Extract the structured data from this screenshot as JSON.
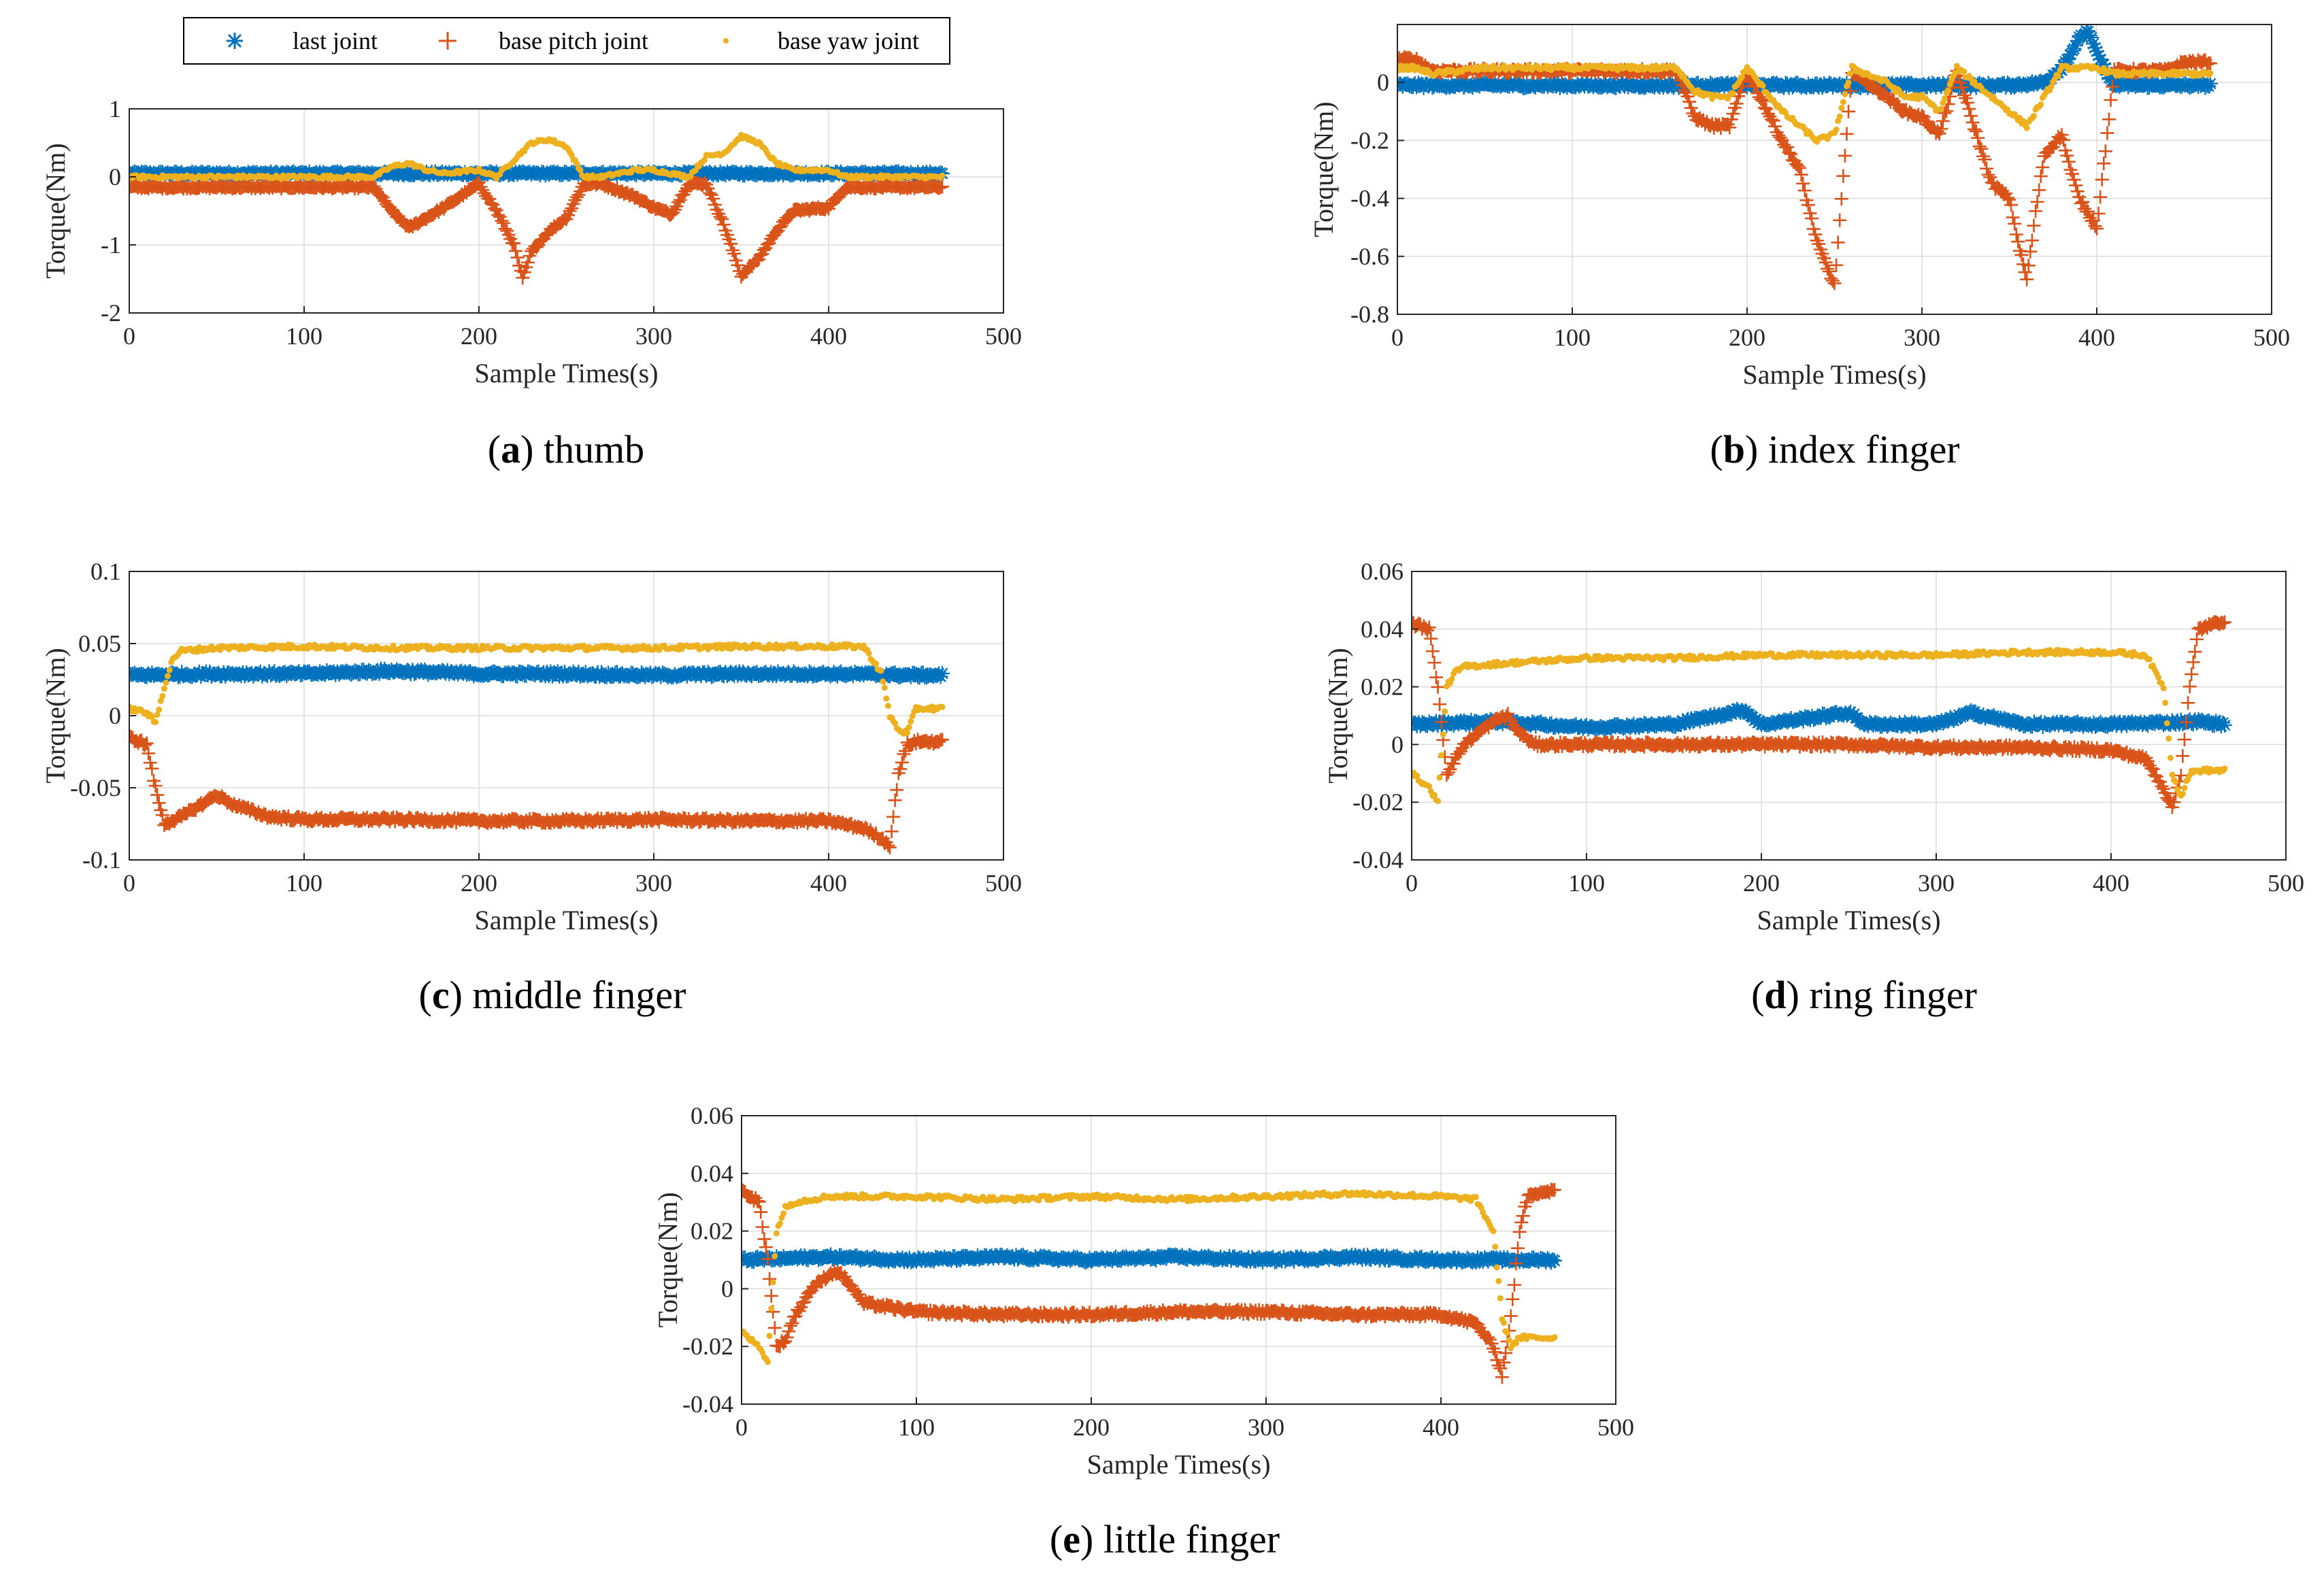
{
  "legend": {
    "entries": [
      {
        "name": "last joint",
        "marker": "asterisk",
        "color": "#0072BD"
      },
      {
        "name": "base pitch joint",
        "marker": "plus",
        "color": "#D95319"
      },
      {
        "name": "base yaw joint",
        "marker": "dot",
        "color": "#EDB120"
      }
    ]
  },
  "chart_data": [
    {
      "id": "a",
      "type": "scatter",
      "caption_letter": "a",
      "caption_text": "thumb",
      "xlabel": "Sample Times(s)",
      "ylabel": "Torque(Nm)",
      "xlim": [
        0,
        500
      ],
      "ylim": [
        -2,
        1
      ],
      "xticks": [
        0,
        100,
        200,
        300,
        400,
        500
      ],
      "yticks": [
        -2,
        -1,
        0,
        1
      ],
      "ytick_labels": [
        "-2",
        "-1",
        "0",
        "1"
      ],
      "grid": true,
      "series": [
        {
          "name": "last joint",
          "x": [
            0,
            50,
            100,
            150,
            200,
            250,
            300,
            350,
            400,
            450,
            465
          ],
          "y": [
            0.05,
            0.05,
            0.05,
            0.05,
            0.05,
            0.05,
            0.05,
            0.05,
            0.05,
            0.05,
            0.05
          ]
        },
        {
          "name": "base pitch joint",
          "x": [
            0,
            50,
            100,
            140,
            150,
            160,
            170,
            180,
            200,
            210,
            220,
            225,
            230,
            240,
            250,
            260,
            270,
            290,
            300,
            310,
            320,
            330,
            340,
            350,
            360,
            370,
            380,
            400,
            410,
            450,
            465
          ],
          "y": [
            -0.15,
            -0.15,
            -0.15,
            -0.15,
            -0.5,
            -0.75,
            -0.6,
            -0.45,
            -0.1,
            -0.5,
            -1.0,
            -1.5,
            -1.1,
            -0.8,
            -0.6,
            -0.1,
            -0.1,
            -0.3,
            -0.45,
            -0.55,
            -0.1,
            -0.1,
            -0.7,
            -1.45,
            -1.2,
            -0.8,
            -0.5,
            -0.45,
            -0.15,
            -0.15,
            -0.15
          ]
        },
        {
          "name": "base yaw joint",
          "x": [
            0,
            50,
            100,
            140,
            150,
            160,
            170,
            180,
            200,
            210,
            220,
            230,
            240,
            250,
            260,
            270,
            290,
            300,
            310,
            320,
            330,
            340,
            350,
            360,
            370,
            380,
            400,
            410,
            450,
            465
          ],
          "y": [
            0,
            0,
            0,
            0,
            0.15,
            0.2,
            0.1,
            0.05,
            0.1,
            0.0,
            0.25,
            0.5,
            0.55,
            0.45,
            0.0,
            0.0,
            0.1,
            0.1,
            0.05,
            0.0,
            0.3,
            0.35,
            0.6,
            0.5,
            0.2,
            0.1,
            0.1,
            0.0,
            0,
            0
          ]
        }
      ]
    },
    {
      "id": "b",
      "type": "scatter",
      "caption_letter": "b",
      "caption_text": "index finger",
      "xlabel": "Sample Times(s)",
      "ylabel": "Torque(Nm)",
      "xlim": [
        0,
        500
      ],
      "ylim": [
        -0.8,
        0.2
      ],
      "xticks": [
        0,
        100,
        200,
        300,
        400,
        500
      ],
      "yticks": [
        -0.8,
        -0.6,
        -0.4,
        -0.2,
        0
      ],
      "ytick_labels": [
        "-0.8",
        "-0.6",
        "-0.4",
        "-0.2",
        "0"
      ],
      "grid": true,
      "series": [
        {
          "name": "last joint",
          "x": [
            0,
            50,
            100,
            150,
            200,
            250,
            300,
            350,
            370,
            380,
            390,
            395,
            400,
            410,
            450,
            465
          ],
          "y": [
            -0.01,
            -0.01,
            -0.01,
            -0.01,
            -0.01,
            -0.01,
            -0.01,
            -0.01,
            0.0,
            0.05,
            0.15,
            0.18,
            0.1,
            -0.01,
            -0.01,
            -0.01
          ]
        },
        {
          "name": "base pitch joint",
          "x": [
            0,
            10,
            20,
            50,
            100,
            160,
            170,
            180,
            190,
            200,
            220,
            230,
            240,
            250,
            260,
            280,
            290,
            300,
            310,
            320,
            340,
            350,
            355,
            360,
            365,
            370,
            380,
            385,
            390,
            400,
            410,
            440,
            450,
            465
          ],
          "y": [
            0.08,
            0.08,
            0.04,
            0.04,
            0.04,
            0.04,
            -0.12,
            -0.15,
            -0.15,
            0.04,
            -0.2,
            -0.3,
            -0.55,
            -0.7,
            0.04,
            -0.05,
            -0.1,
            -0.12,
            -0.18,
            0.04,
            -0.35,
            -0.4,
            -0.55,
            -0.68,
            -0.45,
            -0.25,
            -0.18,
            -0.3,
            -0.4,
            -0.5,
            0.04,
            0.04,
            0.07,
            0.07
          ]
        },
        {
          "name": "base yaw joint",
          "x": [
            0,
            10,
            20,
            50,
            100,
            160,
            170,
            180,
            190,
            200,
            220,
            230,
            240,
            250,
            260,
            280,
            290,
            300,
            310,
            320,
            340,
            350,
            360,
            370,
            380,
            390,
            400,
            410,
            450,
            465
          ],
          "y": [
            0.05,
            0.05,
            0.03,
            0.05,
            0.05,
            0.05,
            -0.03,
            -0.05,
            -0.05,
            0.05,
            -0.1,
            -0.15,
            -0.2,
            -0.18,
            0.05,
            0.0,
            -0.05,
            -0.05,
            -0.1,
            0.05,
            -0.05,
            -0.1,
            -0.15,
            -0.05,
            0.05,
            0.05,
            0.05,
            0.03,
            0.03,
            0.03
          ]
        }
      ]
    },
    {
      "id": "c",
      "type": "scatter",
      "caption_letter": "c",
      "caption_text": "middle finger",
      "xlabel": "Sample Times(s)",
      "ylabel": "Torque(Nm)",
      "xlim": [
        0,
        500
      ],
      "ylim": [
        -0.1,
        0.1
      ],
      "xticks": [
        0,
        100,
        200,
        300,
        400,
        500
      ],
      "yticks": [
        -0.1,
        -0.05,
        0,
        0.05,
        0.1
      ],
      "ytick_labels": [
        "-0.1",
        "-0.05",
        "0",
        "0.05",
        "0.1"
      ],
      "grid": true,
      "series": [
        {
          "name": "last joint",
          "x": [
            0,
            50,
            100,
            150,
            200,
            250,
            300,
            350,
            400,
            450,
            465
          ],
          "y": [
            0.028,
            0.029,
            0.029,
            0.031,
            0.029,
            0.029,
            0.028,
            0.029,
            0.029,
            0.028,
            0.028
          ]
        },
        {
          "name": "base pitch joint",
          "x": [
            0,
            10,
            15,
            20,
            30,
            50,
            60,
            80,
            100,
            150,
            200,
            250,
            300,
            350,
            400,
            420,
            430,
            435,
            440,
            445,
            450,
            465
          ],
          "y": [
            -0.015,
            -0.02,
            -0.05,
            -0.075,
            -0.07,
            -0.055,
            -0.062,
            -0.07,
            -0.072,
            -0.072,
            -0.073,
            -0.073,
            -0.072,
            -0.073,
            -0.073,
            -0.078,
            -0.085,
            -0.09,
            -0.04,
            -0.02,
            -0.018,
            -0.018
          ]
        },
        {
          "name": "base yaw joint",
          "x": [
            0,
            10,
            15,
            20,
            25,
            30,
            50,
            100,
            150,
            200,
            250,
            300,
            350,
            400,
            420,
            430,
            435,
            440,
            445,
            450,
            465
          ],
          "y": [
            0.005,
            0.002,
            -0.005,
            0.02,
            0.04,
            0.045,
            0.047,
            0.048,
            0.047,
            0.047,
            0.047,
            0.047,
            0.048,
            0.048,
            0.048,
            0.03,
            0.0,
            -0.01,
            -0.012,
            0.005,
            0.005
          ]
        }
      ]
    },
    {
      "id": "d",
      "type": "scatter",
      "caption_letter": "d",
      "caption_text": "ring finger",
      "xlabel": "Sample Times(s)",
      "ylabel": "Torque(Nm)",
      "xlim": [
        0,
        500
      ],
      "ylim": [
        -0.04,
        0.06
      ],
      "xticks": [
        0,
        100,
        200,
        300,
        400,
        500
      ],
      "yticks": [
        -0.04,
        -0.02,
        0,
        0.02,
        0.04,
        0.06
      ],
      "ytick_labels": [
        "-0.04",
        "-0.02",
        "0",
        "0.02",
        "0.04",
        "0.06"
      ],
      "grid": true,
      "series": [
        {
          "name": "last joint",
          "x": [
            0,
            50,
            100,
            150,
            190,
            200,
            250,
            260,
            300,
            320,
            350,
            400,
            450,
            465
          ],
          "y": [
            0.007,
            0.008,
            0.006,
            0.007,
            0.012,
            0.007,
            0.011,
            0.007,
            0.007,
            0.011,
            0.007,
            0.007,
            0.008,
            0.007
          ]
        },
        {
          "name": "base pitch joint",
          "x": [
            0,
            10,
            15,
            20,
            25,
            30,
            40,
            50,
            55,
            60,
            70,
            100,
            150,
            200,
            250,
            300,
            350,
            400,
            420,
            430,
            435,
            440,
            445,
            450,
            465
          ],
          "y": [
            0.042,
            0.04,
            0.02,
            -0.01,
            -0.005,
            0.0,
            0.005,
            0.009,
            0.01,
            0.005,
            0.0,
            0.0,
            0.0,
            0.0,
            0.0,
            -0.001,
            -0.001,
            -0.002,
            -0.005,
            -0.015,
            -0.022,
            -0.01,
            0.02,
            0.04,
            0.043
          ]
        },
        {
          "name": "base yaw joint",
          "x": [
            0,
            10,
            15,
            20,
            25,
            30,
            50,
            100,
            150,
            200,
            250,
            300,
            350,
            400,
            420,
            430,
            435,
            440,
            445,
            450,
            465
          ],
          "y": [
            -0.01,
            -0.015,
            -0.02,
            0.02,
            0.025,
            0.027,
            0.028,
            0.03,
            0.03,
            0.031,
            0.031,
            0.031,
            0.032,
            0.032,
            0.031,
            0.02,
            -0.01,
            -0.018,
            -0.01,
            -0.009,
            -0.009
          ]
        }
      ]
    },
    {
      "id": "e",
      "type": "scatter",
      "caption_letter": "e",
      "caption_text": "little finger",
      "xlabel": "Sample Times(s)",
      "ylabel": "Torque(Nm)",
      "xlim": [
        0,
        500
      ],
      "ylim": [
        -0.04,
        0.06
      ],
      "xticks": [
        0,
        100,
        200,
        300,
        400,
        500
      ],
      "yticks": [
        -0.04,
        -0.02,
        0,
        0.02,
        0.04,
        0.06
      ],
      "ytick_labels": [
        "-0.04",
        "-0.02",
        "0",
        "0.02",
        "0.04",
        "0.06"
      ],
      "grid": true,
      "series": [
        {
          "name": "last joint",
          "x": [
            0,
            50,
            100,
            150,
            200,
            250,
            300,
            350,
            400,
            450,
            465
          ],
          "y": [
            0.01,
            0.011,
            0.01,
            0.011,
            0.01,
            0.011,
            0.01,
            0.011,
            0.01,
            0.01,
            0.01
          ]
        },
        {
          "name": "base pitch joint",
          "x": [
            0,
            10,
            15,
            20,
            25,
            30,
            40,
            50,
            55,
            60,
            70,
            100,
            150,
            200,
            250,
            300,
            350,
            400,
            420,
            430,
            435,
            440,
            445,
            450,
            465
          ],
          "y": [
            0.034,
            0.03,
            0.01,
            -0.02,
            -0.018,
            -0.01,
            0.0,
            0.005,
            0.006,
            0.003,
            -0.005,
            -0.008,
            -0.009,
            -0.009,
            -0.008,
            -0.008,
            -0.009,
            -0.009,
            -0.012,
            -0.02,
            -0.03,
            -0.01,
            0.02,
            0.033,
            0.034
          ]
        },
        {
          "name": "base yaw joint",
          "x": [
            0,
            10,
            15,
            20,
            25,
            30,
            50,
            100,
            150,
            200,
            250,
            300,
            350,
            400,
            420,
            430,
            435,
            440,
            445,
            450,
            465
          ],
          "y": [
            -0.015,
            -0.02,
            -0.025,
            0.02,
            0.028,
            0.03,
            0.032,
            0.032,
            0.031,
            0.032,
            0.031,
            0.032,
            0.033,
            0.032,
            0.031,
            0.02,
            -0.01,
            -0.02,
            -0.017,
            -0.017,
            -0.017
          ]
        }
      ]
    }
  ]
}
